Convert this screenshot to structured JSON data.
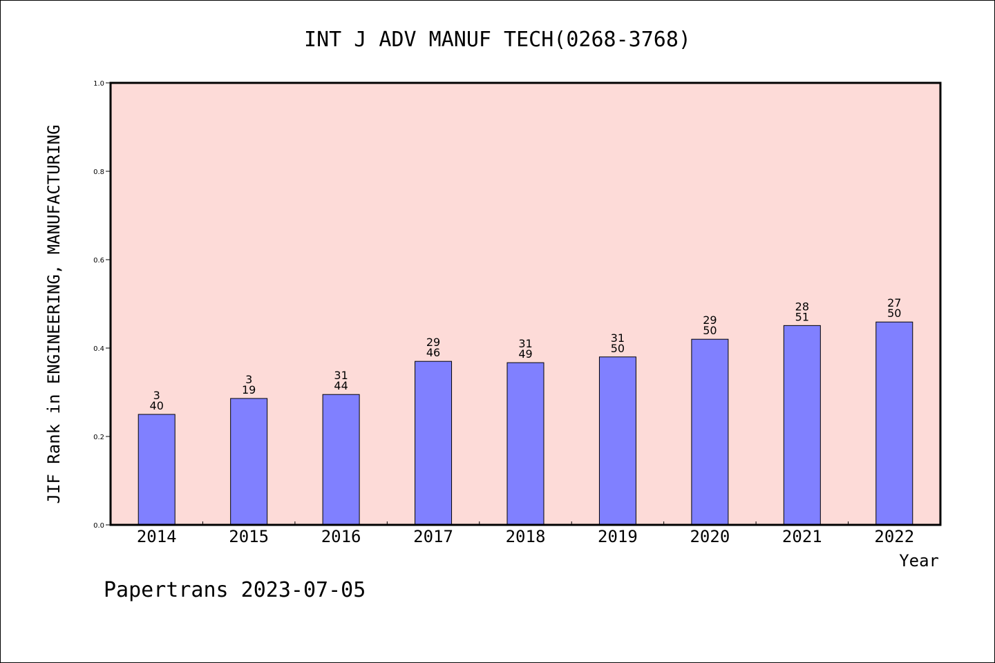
{
  "chart_data": {
    "type": "bar",
    "title": "INT J ADV MANUF TECH(0268-3768)",
    "xlabel": "Year",
    "ylabel": "JIF Rank in ENGINEERING, MANUFACTURING",
    "ylim": [
      0,
      1.0
    ],
    "yticks": [
      "0.0",
      "0.2",
      "0.4",
      "0.6",
      "0.8",
      "1.0"
    ],
    "categories": [
      "2014",
      "2015",
      "2016",
      "2017",
      "2018",
      "2019",
      "2020",
      "2021",
      "2022"
    ],
    "values": [
      0.25,
      0.286,
      0.295,
      0.37,
      0.367,
      0.38,
      0.42,
      0.451,
      0.459
    ],
    "labels": [
      {
        "top": "3",
        "bottom": "40"
      },
      {
        "top": "3",
        "bottom": "19"
      },
      {
        "top": "31",
        "bottom": "44"
      },
      {
        "top": "29",
        "bottom": "46"
      },
      {
        "top": "31",
        "bottom": "49"
      },
      {
        "top": "31",
        "bottom": "50"
      },
      {
        "top": "29",
        "bottom": "50"
      },
      {
        "top": "28",
        "bottom": "51"
      },
      {
        "top": "27",
        "bottom": "50"
      }
    ],
    "grid": false,
    "colors": {
      "plot_background": "#fddbd8",
      "bar_fill": "#8080ff",
      "bar_edge": "#000000"
    }
  },
  "footer": "Papertrans 2023-07-05"
}
